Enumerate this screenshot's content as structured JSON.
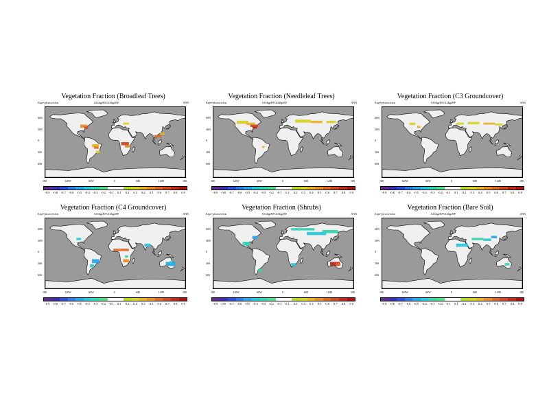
{
  "figure": {
    "panels": [
      {
        "title": "Vegetation Fraction (Broadleaf Trees)",
        "key": "broadleaf"
      },
      {
        "title": "Vegetation Fraction (Needleleaf Trees)",
        "key": "needleleaf"
      },
      {
        "title": "Vegetation Fraction (C3 Groundcover)",
        "key": "c3"
      },
      {
        "title": "Vegetation Fraction (C4 Groundcover)",
        "key": "c4"
      },
      {
        "title": "Vegetation Fraction (Shrubs)",
        "key": "shrubs"
      },
      {
        "title": "Vegetation Fraction (Bare Soil)",
        "key": "bare"
      }
    ],
    "subtitle_left": "Expt=pfcrost-tifcst",
    "subtitle_mid": "GO4qp/EP   GO4qp/EP",
    "subtitle_right": "ANN",
    "lat_labels": [
      "60N",
      "30N",
      "0",
      "30S",
      "60S"
    ],
    "lon_labels": [
      "180",
      "120W",
      "60W",
      "0",
      "60E",
      "120E",
      "180"
    ],
    "colorbar_ticks": [
      "-0.9",
      "-0.8",
      "-0.7",
      "-0.6",
      "-0.5",
      "-0.4",
      "-0.3",
      "-0.2",
      "-0.1",
      "0.1",
      "0.2",
      "0.3",
      "0.4",
      "0.5",
      "0.6",
      "0.7",
      "0.8",
      "0.9"
    ],
    "colorbar_colors": [
      "#5b2d90",
      "#3a2fb0",
      "#2a4fd8",
      "#2c7fe6",
      "#2aa7e8",
      "#2cc6d8",
      "#37d4b0",
      "#55dc8a",
      "#ffffff",
      "#ffffff",
      "#b4dc2a",
      "#d6d22a",
      "#e6b22a",
      "#e68e2a",
      "#de6a28",
      "#d04a24",
      "#c02a1e",
      "#a61414"
    ],
    "colors": {
      "ocean": "#9a9a9a",
      "land": "#f0f0f0"
    }
  }
}
